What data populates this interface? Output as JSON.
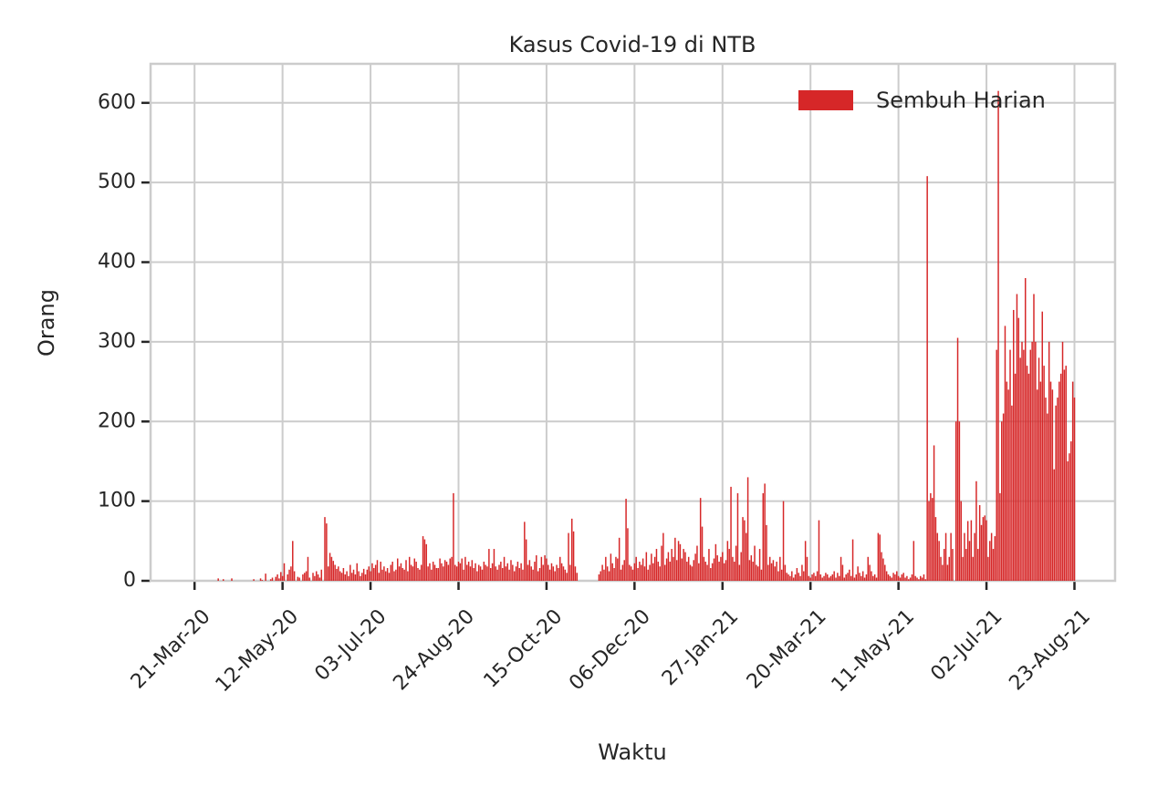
{
  "chart_data": {
    "type": "bar",
    "title": "Kasus Covid-19 di NTB",
    "xlabel": "Waktu",
    "ylabel": "Orang",
    "x": [
      "2020-04-02",
      "2020-04-03",
      "2020-04-04",
      "2020-04-05",
      "2020-04-06",
      "2020-04-07",
      "2020-04-08",
      "2020-04-09",
      "2020-04-10",
      "2020-04-11",
      "2020-04-12",
      "2020-04-13",
      "2020-04-14",
      "2020-04-15",
      "2020-04-16",
      "2020-04-17",
      "2020-04-18",
      "2020-04-19",
      "2020-04-20",
      "2020-04-21",
      "2020-04-22",
      "2020-04-23",
      "2020-04-24",
      "2020-04-25",
      "2020-04-26",
      "2020-04-27",
      "2020-04-28",
      "2020-04-29",
      "2020-04-30",
      "2020-05-01",
      "2020-05-02",
      "2020-05-03",
      "2020-05-04",
      "2020-05-05",
      "2020-05-06",
      "2020-05-07",
      "2020-05-08",
      "2020-05-09",
      "2020-05-10",
      "2020-05-11",
      "2020-05-12",
      "2020-05-13",
      "2020-05-14",
      "2020-05-15",
      "2020-05-16",
      "2020-05-17",
      "2020-05-18",
      "2020-05-19",
      "2020-05-20",
      "2020-05-21",
      "2020-05-22",
      "2020-05-23",
      "2020-05-24",
      "2020-05-25",
      "2020-05-26",
      "2020-05-27",
      "2020-05-28",
      "2020-05-29",
      "2020-05-30",
      "2020-05-31",
      "2020-06-01",
      "2020-06-02",
      "2020-06-03",
      "2020-06-04",
      "2020-06-05",
      "2020-06-06",
      "2020-06-07",
      "2020-06-08",
      "2020-06-09",
      "2020-06-10",
      "2020-06-11",
      "2020-06-12",
      "2020-06-13",
      "2020-06-14",
      "2020-06-15",
      "2020-06-16",
      "2020-06-17",
      "2020-06-18",
      "2020-06-19",
      "2020-06-20",
      "2020-06-21",
      "2020-06-22",
      "2020-06-23",
      "2020-06-24",
      "2020-06-25",
      "2020-06-26",
      "2020-06-27",
      "2020-06-28",
      "2020-06-29",
      "2020-06-30",
      "2020-07-01",
      "2020-07-02",
      "2020-07-03",
      "2020-07-04",
      "2020-07-05",
      "2020-07-06",
      "2020-07-07",
      "2020-07-08",
      "2020-07-09",
      "2020-07-10",
      "2020-07-11",
      "2020-07-12",
      "2020-07-13",
      "2020-07-14",
      "2020-07-15",
      "2020-07-16",
      "2020-07-17",
      "2020-07-18",
      "2020-07-19",
      "2020-07-20",
      "2020-07-21",
      "2020-07-22",
      "2020-07-23",
      "2020-07-24",
      "2020-07-25",
      "2020-07-26",
      "2020-07-27",
      "2020-07-28",
      "2020-07-29",
      "2020-07-30",
      "2020-07-31",
      "2020-08-01",
      "2020-08-02",
      "2020-08-03",
      "2020-08-04",
      "2020-08-05",
      "2020-08-06",
      "2020-08-07",
      "2020-08-08",
      "2020-08-09",
      "2020-08-10",
      "2020-08-11",
      "2020-08-12",
      "2020-08-13",
      "2020-08-14",
      "2020-08-15",
      "2020-08-16",
      "2020-08-17",
      "2020-08-18",
      "2020-08-19",
      "2020-08-20",
      "2020-08-21",
      "2020-08-22",
      "2020-08-23",
      "2020-08-24",
      "2020-08-25",
      "2020-08-26",
      "2020-08-27",
      "2020-08-28",
      "2020-08-29",
      "2020-08-30",
      "2020-08-31",
      "2020-09-01",
      "2020-09-02",
      "2020-09-03",
      "2020-09-04",
      "2020-09-05",
      "2020-09-06",
      "2020-09-07",
      "2020-09-08",
      "2020-09-09",
      "2020-09-10",
      "2020-09-11",
      "2020-09-12",
      "2020-09-13",
      "2020-09-14",
      "2020-09-15",
      "2020-09-16",
      "2020-09-17",
      "2020-09-18",
      "2020-09-19",
      "2020-09-20",
      "2020-09-21",
      "2020-09-22",
      "2020-09-23",
      "2020-09-24",
      "2020-09-25",
      "2020-09-26",
      "2020-09-27",
      "2020-09-28",
      "2020-09-29",
      "2020-09-30",
      "2020-10-01",
      "2020-10-02",
      "2020-10-03",
      "2020-10-04",
      "2020-10-05",
      "2020-10-06",
      "2020-10-07",
      "2020-10-08",
      "2020-10-09",
      "2020-10-10",
      "2020-10-11",
      "2020-10-12",
      "2020-10-13",
      "2020-10-14",
      "2020-10-15",
      "2020-10-16",
      "2020-10-17",
      "2020-10-18",
      "2020-10-19",
      "2020-10-20",
      "2020-10-21",
      "2020-10-22",
      "2020-10-23",
      "2020-10-24",
      "2020-10-25",
      "2020-10-26",
      "2020-10-27",
      "2020-10-28",
      "2020-10-29",
      "2020-10-30",
      "2020-10-31",
      "2020-11-01",
      "2020-11-02",
      "2020-11-03",
      "2020-11-04",
      "2020-11-05",
      "2020-11-06",
      "2020-11-07",
      "2020-11-08",
      "2020-11-09",
      "2020-11-10",
      "2020-11-11",
      "2020-11-12",
      "2020-11-13",
      "2020-11-14",
      "2020-11-15",
      "2020-11-16",
      "2020-11-17",
      "2020-11-18",
      "2020-11-19",
      "2020-11-20",
      "2020-11-21",
      "2020-11-22",
      "2020-11-23",
      "2020-11-24",
      "2020-11-25",
      "2020-11-26",
      "2020-11-27",
      "2020-11-28",
      "2020-11-29",
      "2020-11-30",
      "2020-12-01",
      "2020-12-02",
      "2020-12-03",
      "2020-12-04",
      "2020-12-05",
      "2020-12-06",
      "2020-12-07",
      "2020-12-08",
      "2020-12-09",
      "2020-12-10",
      "2020-12-11",
      "2020-12-12",
      "2020-12-13",
      "2020-12-14",
      "2020-12-15",
      "2020-12-16",
      "2020-12-17",
      "2020-12-18",
      "2020-12-19",
      "2020-12-20",
      "2020-12-21",
      "2020-12-22",
      "2020-12-23",
      "2020-12-24",
      "2020-12-25",
      "2020-12-26",
      "2020-12-27",
      "2020-12-28",
      "2020-12-29",
      "2020-12-30",
      "2020-12-31",
      "2021-01-01",
      "2021-01-02",
      "2021-01-03",
      "2021-01-04",
      "2021-01-05",
      "2021-01-06",
      "2021-01-07",
      "2021-01-08",
      "2021-01-09",
      "2021-01-10",
      "2021-01-11",
      "2021-01-12",
      "2021-01-13",
      "2021-01-14",
      "2021-01-15",
      "2021-01-16",
      "2021-01-17",
      "2021-01-18",
      "2021-01-19",
      "2021-01-20",
      "2021-01-21",
      "2021-01-22",
      "2021-01-23",
      "2021-01-24",
      "2021-01-25",
      "2021-01-26",
      "2021-01-27",
      "2021-01-28",
      "2021-01-29",
      "2021-01-30",
      "2021-01-31",
      "2021-02-01",
      "2021-02-02",
      "2021-02-03",
      "2021-02-04",
      "2021-02-05",
      "2021-02-06",
      "2021-02-07",
      "2021-02-08",
      "2021-02-09",
      "2021-02-10",
      "2021-02-11",
      "2021-02-12",
      "2021-02-13",
      "2021-02-14",
      "2021-02-15",
      "2021-02-16",
      "2021-02-17",
      "2021-02-18",
      "2021-02-19",
      "2021-02-20",
      "2021-02-21",
      "2021-02-22",
      "2021-02-23",
      "2021-02-24",
      "2021-02-25",
      "2021-02-26",
      "2021-02-27",
      "2021-02-28",
      "2021-03-01",
      "2021-03-02",
      "2021-03-03",
      "2021-03-04",
      "2021-03-05",
      "2021-03-06",
      "2021-03-07",
      "2021-03-08",
      "2021-03-09",
      "2021-03-10",
      "2021-03-11",
      "2021-03-12",
      "2021-03-13",
      "2021-03-14",
      "2021-03-15",
      "2021-03-16",
      "2021-03-17",
      "2021-03-18",
      "2021-03-19",
      "2021-03-20",
      "2021-03-21",
      "2021-03-22",
      "2021-03-23",
      "2021-03-24",
      "2021-03-25",
      "2021-03-26",
      "2021-03-27",
      "2021-03-28",
      "2021-03-29",
      "2021-03-30",
      "2021-03-31",
      "2021-04-01",
      "2021-04-02",
      "2021-04-03",
      "2021-04-04",
      "2021-04-05",
      "2021-04-06",
      "2021-04-07",
      "2021-04-08",
      "2021-04-09",
      "2021-04-10",
      "2021-04-11",
      "2021-04-12",
      "2021-04-13",
      "2021-04-14",
      "2021-04-15",
      "2021-04-16",
      "2021-04-17",
      "2021-04-18",
      "2021-04-19",
      "2021-04-20",
      "2021-04-21",
      "2021-04-22",
      "2021-04-23",
      "2021-04-24",
      "2021-04-25",
      "2021-04-26",
      "2021-04-27",
      "2021-04-28",
      "2021-04-29",
      "2021-04-30",
      "2021-05-01",
      "2021-05-02",
      "2021-05-03",
      "2021-05-04",
      "2021-05-05",
      "2021-05-06",
      "2021-05-07",
      "2021-05-08",
      "2021-05-09",
      "2021-05-10",
      "2021-05-11",
      "2021-05-12",
      "2021-05-13",
      "2021-05-14",
      "2021-05-15",
      "2021-05-16",
      "2021-05-17",
      "2021-05-18",
      "2021-05-19",
      "2021-05-20",
      "2021-05-21",
      "2021-05-22",
      "2021-05-23",
      "2021-05-24",
      "2021-05-25",
      "2021-05-26",
      "2021-05-27",
      "2021-05-28",
      "2021-05-29",
      "2021-05-30",
      "2021-05-31",
      "2021-06-01",
      "2021-06-02",
      "2021-06-03",
      "2021-06-04",
      "2021-06-05",
      "2021-06-06",
      "2021-06-07",
      "2021-06-08",
      "2021-06-09",
      "2021-06-10",
      "2021-06-11",
      "2021-06-12",
      "2021-06-13",
      "2021-06-14",
      "2021-06-15",
      "2021-06-16",
      "2021-06-17",
      "2021-06-18",
      "2021-06-19",
      "2021-06-20",
      "2021-06-21",
      "2021-06-22",
      "2021-06-23",
      "2021-06-24",
      "2021-06-25",
      "2021-06-26",
      "2021-06-27",
      "2021-06-28",
      "2021-06-29",
      "2021-06-30",
      "2021-07-01",
      "2021-07-02",
      "2021-07-03",
      "2021-07-04",
      "2021-07-05",
      "2021-07-06",
      "2021-07-07",
      "2021-07-08",
      "2021-07-09",
      "2021-07-10",
      "2021-07-11",
      "2021-07-12",
      "2021-07-13",
      "2021-07-14",
      "2021-07-15",
      "2021-07-16",
      "2021-07-17",
      "2021-07-18",
      "2021-07-19",
      "2021-07-20",
      "2021-07-21",
      "2021-07-22",
      "2021-07-23",
      "2021-07-24",
      "2021-07-25",
      "2021-07-26",
      "2021-07-27",
      "2021-07-28",
      "2021-07-29",
      "2021-07-30",
      "2021-07-31",
      "2021-08-01",
      "2021-08-02",
      "2021-08-03",
      "2021-08-04",
      "2021-08-05",
      "2021-08-06",
      "2021-08-07",
      "2021-08-08",
      "2021-08-09",
      "2021-08-10",
      "2021-08-11",
      "2021-08-12",
      "2021-08-13",
      "2021-08-14",
      "2021-08-15",
      "2021-08-16",
      "2021-08-17",
      "2021-08-18",
      "2021-08-19",
      "2021-08-20",
      "2021-08-21",
      "2021-08-22",
      "2021-08-23"
    ],
    "series": [
      {
        "name": "Sembuh Harian",
        "color": "#d62728",
        "values": [
          0,
          0,
          3,
          0,
          0,
          2,
          0,
          0,
          0,
          0,
          3,
          0,
          0,
          0,
          0,
          0,
          0,
          0,
          0,
          0,
          0,
          0,
          0,
          2,
          0,
          0,
          0,
          3,
          1,
          0,
          9,
          0,
          0,
          2,
          4,
          0,
          5,
          8,
          3,
          11,
          6,
          22,
          0,
          8,
          14,
          18,
          50,
          12,
          0,
          5,
          4,
          0,
          8,
          10,
          12,
          30,
          4,
          0,
          10,
          6,
          12,
          8,
          4,
          14,
          0,
          80,
          72,
          18,
          35,
          30,
          25,
          20,
          15,
          18,
          12,
          10,
          16,
          8,
          12,
          6,
          20,
          10,
          14,
          8,
          22,
          12,
          6,
          10,
          15,
          8,
          14,
          18,
          12,
          22,
          16,
          20,
          26,
          10,
          24,
          14,
          18,
          12,
          16,
          10,
          20,
          24,
          12,
          14,
          28,
          18,
          22,
          16,
          14,
          26,
          12,
          30,
          20,
          18,
          28,
          24,
          16,
          14,
          20,
          56,
          52,
          46,
          18,
          22,
          14,
          24,
          20,
          16,
          16,
          28,
          22,
          18,
          26,
          24,
          20,
          28,
          30,
          110,
          20,
          18,
          24,
          22,
          28,
          14,
          30,
          20,
          24,
          18,
          26,
          16,
          22,
          12,
          20,
          18,
          14,
          24,
          20,
          18,
          40,
          16,
          22,
          40,
          18,
          14,
          20,
          24,
          16,
          30,
          18,
          22,
          14,
          26,
          20,
          12,
          18,
          24,
          16,
          22,
          14,
          74,
          52,
          20,
          26,
          18,
          14,
          24,
          32,
          12,
          16,
          30,
          20,
          32,
          28,
          20,
          14,
          22,
          18,
          12,
          20,
          16,
          30,
          22,
          18,
          14,
          10,
          60,
          20,
          78,
          62,
          18,
          10,
          0,
          0,
          0,
          0,
          0,
          0,
          0,
          0,
          0,
          0,
          0,
          0,
          8,
          12,
          20,
          14,
          30,
          18,
          12,
          34,
          22,
          16,
          30,
          28,
          54,
          14,
          20,
          26,
          103,
          66,
          20,
          18,
          14,
          22,
          30,
          16,
          24,
          20,
          28,
          18,
          36,
          14,
          20,
          34,
          22,
          30,
          40,
          24,
          18,
          44,
          60,
          20,
          28,
          36,
          24,
          40,
          30,
          54,
          26,
          50,
          46,
          28,
          40,
          36,
          24,
          30,
          20,
          18,
          26,
          34,
          44,
          22,
          104,
          68,
          30,
          24,
          20,
          40,
          16,
          22,
          28,
          46,
          32,
          24,
          30,
          36,
          22,
          26,
          50,
          40,
          118,
          30,
          24,
          44,
          110,
          20,
          36,
          80,
          76,
          60,
          130,
          26,
          32,
          24,
          44,
          20,
          18,
          40,
          14,
          110,
          122,
          70,
          20,
          30,
          22,
          26,
          18,
          24,
          12,
          30,
          14,
          100,
          20,
          10,
          8,
          6,
          12,
          4,
          8,
          16,
          10,
          6,
          20,
          12,
          50,
          30,
          6,
          4,
          8,
          10,
          6,
          12,
          76,
          8,
          4,
          6,
          10,
          8,
          4,
          6,
          8,
          12,
          4,
          10,
          6,
          30,
          20,
          4,
          8,
          10,
          14,
          6,
          52,
          4,
          8,
          18,
          10,
          6,
          12,
          4,
          8,
          30,
          20,
          12,
          6,
          8,
          4,
          60,
          58,
          36,
          28,
          20,
          12,
          8,
          6,
          4,
          10,
          8,
          12,
          6,
          4,
          8,
          10,
          4,
          6,
          2,
          4,
          8,
          50,
          6,
          4,
          2,
          6,
          4,
          8,
          2,
          508,
          100,
          110,
          104,
          170,
          80,
          60,
          50,
          30,
          20,
          40,
          60,
          20,
          30,
          60,
          40,
          0,
          200,
          305,
          200,
          100,
          30,
          60,
          40,
          75,
          50,
          76,
          30,
          60,
          125,
          40,
          95,
          70,
          80,
          82,
          76,
          30,
          50,
          60,
          40,
          56,
          290,
          615,
          110,
          200,
          210,
          320,
          250,
          240,
          290,
          220,
          340,
          260,
          360,
          330,
          280,
          300,
          290,
          380,
          270,
          260,
          290,
          300,
          360,
          300,
          240,
          280,
          250,
          338,
          270,
          230,
          210,
          300,
          250,
          240,
          140,
          220,
          230,
          250,
          260,
          300,
          265,
          270,
          150,
          160,
          175,
          250,
          230
        ]
      }
    ],
    "xlim": [
      "2020-02-24",
      "2021-09-16"
    ],
    "xticks": [
      {
        "value": "2020-03-21",
        "label": "21-Mar-20"
      },
      {
        "value": "2020-05-12",
        "label": "12-May-20"
      },
      {
        "value": "2020-07-03",
        "label": "03-Jul-20"
      },
      {
        "value": "2020-08-24",
        "label": "24-Aug-20"
      },
      {
        "value": "2020-10-15",
        "label": "15-Oct-20"
      },
      {
        "value": "2020-12-06",
        "label": "06-Dec-20"
      },
      {
        "value": "2021-01-27",
        "label": "27-Jan-21"
      },
      {
        "value": "2021-03-20",
        "label": "20-Mar-21"
      },
      {
        "value": "2021-05-11",
        "label": "11-May-21"
      },
      {
        "value": "2021-07-02",
        "label": "02-Jul-21"
      },
      {
        "value": "2021-08-23",
        "label": "23-Aug-21"
      }
    ],
    "ylim": [
      0,
      649
    ],
    "yticks": [
      0,
      100,
      200,
      300,
      400,
      500,
      600
    ],
    "grid": true,
    "legend": "upper right"
  }
}
